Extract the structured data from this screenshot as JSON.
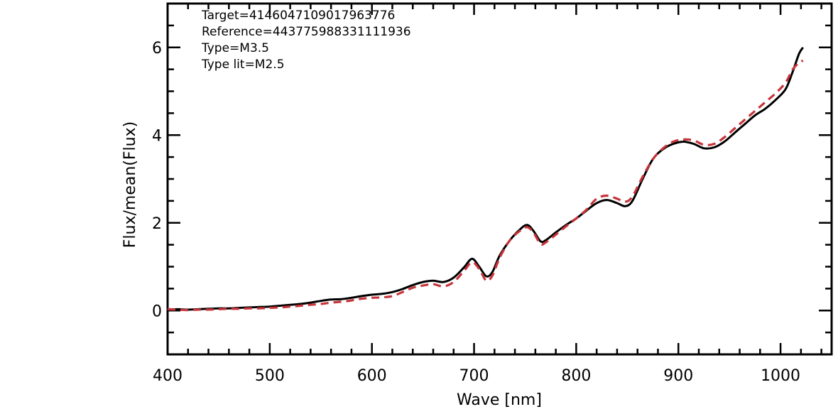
{
  "chart_data": {
    "type": "line",
    "xlabel": "Wave [nm]",
    "ylabel": "Flux/mean(Flux)",
    "xlim": [
      400,
      1050
    ],
    "ylim": [
      -1,
      7
    ],
    "xticks": [
      400,
      500,
      600,
      700,
      800,
      900,
      1000
    ],
    "yticks": [
      0,
      2,
      4,
      6
    ],
    "xticks_text": [
      "400",
      "500",
      "600",
      "700",
      "800",
      "900",
      "1000"
    ],
    "yticks_text": [
      "0",
      "2",
      "4",
      "6"
    ],
    "grid": false,
    "annotations": [
      "Target=4146047109017963776",
      "Reference=443775988331111936",
      "Type=M3.5",
      "Type lit=M2.5"
    ],
    "series": [
      {
        "color": "#000000",
        "style": "solid",
        "points": [
          [
            400,
            0.02
          ],
          [
            410,
            0.03
          ],
          [
            420,
            0.02
          ],
          [
            430,
            0.03
          ],
          [
            440,
            0.04
          ],
          [
            450,
            0.05
          ],
          [
            460,
            0.05
          ],
          [
            470,
            0.06
          ],
          [
            480,
            0.07
          ],
          [
            490,
            0.08
          ],
          [
            500,
            0.09
          ],
          [
            510,
            0.11
          ],
          [
            520,
            0.13
          ],
          [
            530,
            0.15
          ],
          [
            540,
            0.18
          ],
          [
            550,
            0.22
          ],
          [
            560,
            0.25
          ],
          [
            570,
            0.26
          ],
          [
            580,
            0.29
          ],
          [
            590,
            0.33
          ],
          [
            600,
            0.36
          ],
          [
            610,
            0.38
          ],
          [
            620,
            0.42
          ],
          [
            630,
            0.49
          ],
          [
            640,
            0.58
          ],
          [
            650,
            0.65
          ],
          [
            660,
            0.68
          ],
          [
            670,
            0.65
          ],
          [
            680,
            0.75
          ],
          [
            690,
            0.98
          ],
          [
            698,
            1.18
          ],
          [
            705,
            1.0
          ],
          [
            712,
            0.78
          ],
          [
            718,
            0.88
          ],
          [
            725,
            1.25
          ],
          [
            735,
            1.6
          ],
          [
            745,
            1.85
          ],
          [
            752,
            1.95
          ],
          [
            758,
            1.82
          ],
          [
            765,
            1.58
          ],
          [
            770,
            1.6
          ],
          [
            780,
            1.78
          ],
          [
            790,
            1.95
          ],
          [
            800,
            2.1
          ],
          [
            810,
            2.28
          ],
          [
            820,
            2.45
          ],
          [
            830,
            2.52
          ],
          [
            840,
            2.45
          ],
          [
            848,
            2.38
          ],
          [
            855,
            2.5
          ],
          [
            865,
            3.0
          ],
          [
            875,
            3.45
          ],
          [
            885,
            3.68
          ],
          [
            895,
            3.8
          ],
          [
            905,
            3.85
          ],
          [
            915,
            3.8
          ],
          [
            925,
            3.7
          ],
          [
            935,
            3.72
          ],
          [
            945,
            3.85
          ],
          [
            955,
            4.05
          ],
          [
            965,
            4.25
          ],
          [
            975,
            4.45
          ],
          [
            985,
            4.6
          ],
          [
            995,
            4.8
          ],
          [
            1005,
            5.05
          ],
          [
            1012,
            5.45
          ],
          [
            1018,
            5.85
          ],
          [
            1022,
            6.0
          ]
        ]
      },
      {
        "color": "#c6343a",
        "style": "dashed",
        "points": [
          [
            400,
            0.03
          ],
          [
            410,
            0.02
          ],
          [
            420,
            0.01
          ],
          [
            430,
            0.02
          ],
          [
            440,
            0.02
          ],
          [
            450,
            0.03
          ],
          [
            460,
            0.04
          ],
          [
            470,
            0.04
          ],
          [
            480,
            0.05
          ],
          [
            490,
            0.05
          ],
          [
            500,
            0.06
          ],
          [
            510,
            0.07
          ],
          [
            520,
            0.09
          ],
          [
            530,
            0.11
          ],
          [
            540,
            0.13
          ],
          [
            550,
            0.15
          ],
          [
            560,
            0.18
          ],
          [
            570,
            0.2
          ],
          [
            580,
            0.23
          ],
          [
            590,
            0.27
          ],
          [
            600,
            0.29
          ],
          [
            610,
            0.3
          ],
          [
            620,
            0.33
          ],
          [
            630,
            0.42
          ],
          [
            640,
            0.52
          ],
          [
            650,
            0.57
          ],
          [
            660,
            0.6
          ],
          [
            670,
            0.55
          ],
          [
            680,
            0.65
          ],
          [
            690,
            0.9
          ],
          [
            698,
            1.1
          ],
          [
            705,
            0.95
          ],
          [
            712,
            0.68
          ],
          [
            718,
            0.8
          ],
          [
            725,
            1.2
          ],
          [
            735,
            1.6
          ],
          [
            745,
            1.82
          ],
          [
            752,
            1.9
          ],
          [
            758,
            1.78
          ],
          [
            765,
            1.52
          ],
          [
            770,
            1.55
          ],
          [
            780,
            1.73
          ],
          [
            790,
            1.92
          ],
          [
            800,
            2.1
          ],
          [
            810,
            2.3
          ],
          [
            820,
            2.55
          ],
          [
            830,
            2.62
          ],
          [
            840,
            2.55
          ],
          [
            848,
            2.48
          ],
          [
            855,
            2.6
          ],
          [
            865,
            3.05
          ],
          [
            875,
            3.45
          ],
          [
            885,
            3.7
          ],
          [
            895,
            3.85
          ],
          [
            905,
            3.9
          ],
          [
            915,
            3.88
          ],
          [
            925,
            3.78
          ],
          [
            935,
            3.8
          ],
          [
            945,
            3.95
          ],
          [
            955,
            4.15
          ],
          [
            965,
            4.35
          ],
          [
            975,
            4.55
          ],
          [
            985,
            4.75
          ],
          [
            995,
            4.95
          ],
          [
            1005,
            5.2
          ],
          [
            1012,
            5.5
          ],
          [
            1018,
            5.65
          ],
          [
            1022,
            5.7
          ]
        ]
      }
    ]
  }
}
